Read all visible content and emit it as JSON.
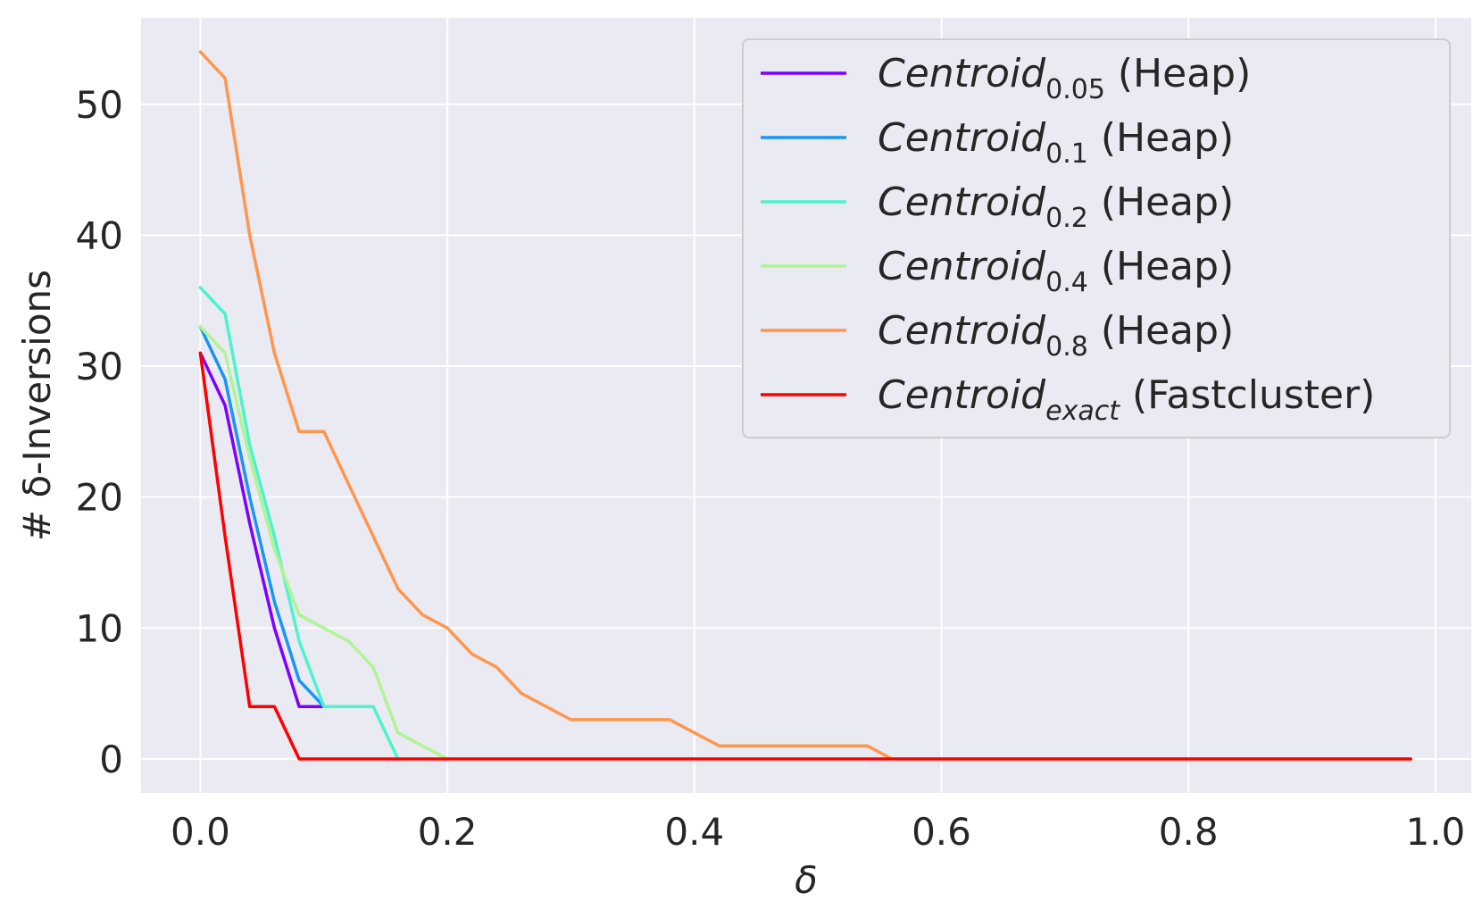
{
  "chart_data": {
    "type": "line",
    "title": "",
    "xlabel": "δ",
    "ylabel": "# δ-Inversions",
    "xlim": [
      -0.048,
      1.029
    ],
    "ylim": [
      -2.6,
      56.6
    ],
    "xticks": [
      0.0,
      0.2,
      0.4,
      0.6,
      0.8,
      1.0
    ],
    "xtick_labels": [
      "0.0",
      "0.2",
      "0.4",
      "0.6",
      "0.8",
      "1.0"
    ],
    "yticks": [
      0,
      10,
      20,
      30,
      40,
      50
    ],
    "ytick_labels": [
      "0",
      "10",
      "20",
      "30",
      "40",
      "50"
    ],
    "grid": true,
    "legend_position": "top-right",
    "series": [
      {
        "name": "Centroid_0.05 (Heap)",
        "label_main": "Centroid",
        "label_sub": "0.05",
        "label_suffix": "(Heap)",
        "color": "#8000ff",
        "x": [
          0.0,
          0.02,
          0.04,
          0.06,
          0.08,
          0.1
        ],
        "y": [
          31,
          27,
          18,
          10,
          4,
          4
        ]
      },
      {
        "name": "Centroid_0.1 (Heap)",
        "label_main": "Centroid",
        "label_sub": "0.1",
        "label_suffix": "(Heap)",
        "color": "#1996f3",
        "x": [
          0.0,
          0.02,
          0.04,
          0.06,
          0.08,
          0.1
        ],
        "y": [
          33,
          29,
          20,
          12,
          6,
          4
        ]
      },
      {
        "name": "Centroid_0.2 (Heap)",
        "label_main": "Centroid",
        "label_sub": "0.2",
        "label_suffix": "(Heap)",
        "color": "#4df3ce",
        "x": [
          0.0,
          0.02,
          0.04,
          0.06,
          0.08,
          0.1,
          0.12,
          0.14,
          0.16
        ],
        "y": [
          36,
          34,
          24,
          17,
          9,
          4,
          4,
          4,
          0
        ]
      },
      {
        "name": "Centroid_0.4 (Heap)",
        "label_main": "Centroid",
        "label_sub": "0.4",
        "label_suffix": "(Heap)",
        "color": "#b2f396",
        "x": [
          0.0,
          0.02,
          0.04,
          0.06,
          0.08,
          0.1,
          0.12,
          0.14,
          0.16,
          0.18,
          0.2
        ],
        "y": [
          33,
          31,
          23,
          16,
          11,
          10,
          9,
          7,
          2,
          1,
          0
        ]
      },
      {
        "name": "Centroid_0.8 (Heap)",
        "label_main": "Centroid",
        "label_sub": "0.8",
        "label_suffix": "(Heap)",
        "color": "#ff964f",
        "x": [
          0.0,
          0.02,
          0.04,
          0.06,
          0.08,
          0.1,
          0.12,
          0.14,
          0.16,
          0.18,
          0.2,
          0.22,
          0.24,
          0.26,
          0.28,
          0.3,
          0.32,
          0.34,
          0.36,
          0.38,
          0.4,
          0.42,
          0.44,
          0.46,
          0.48,
          0.5,
          0.52,
          0.54,
          0.56,
          0.98
        ],
        "y": [
          54,
          52,
          40,
          31,
          25,
          25,
          21,
          17,
          13,
          11,
          10,
          8,
          7,
          5,
          4,
          3,
          3,
          3,
          3,
          3,
          2,
          1,
          1,
          1,
          1,
          1,
          1,
          1,
          0,
          0
        ]
      },
      {
        "name": "Centroid_exact (Fastcluster)",
        "label_main": "Centroid",
        "label_sub": "exact",
        "label_suffix": "(Fastcluster)",
        "color": "#ff0000",
        "x": [
          0.0,
          0.02,
          0.04,
          0.06,
          0.08,
          0.98
        ],
        "y": [
          31,
          17,
          4,
          4,
          0,
          0
        ]
      }
    ]
  }
}
